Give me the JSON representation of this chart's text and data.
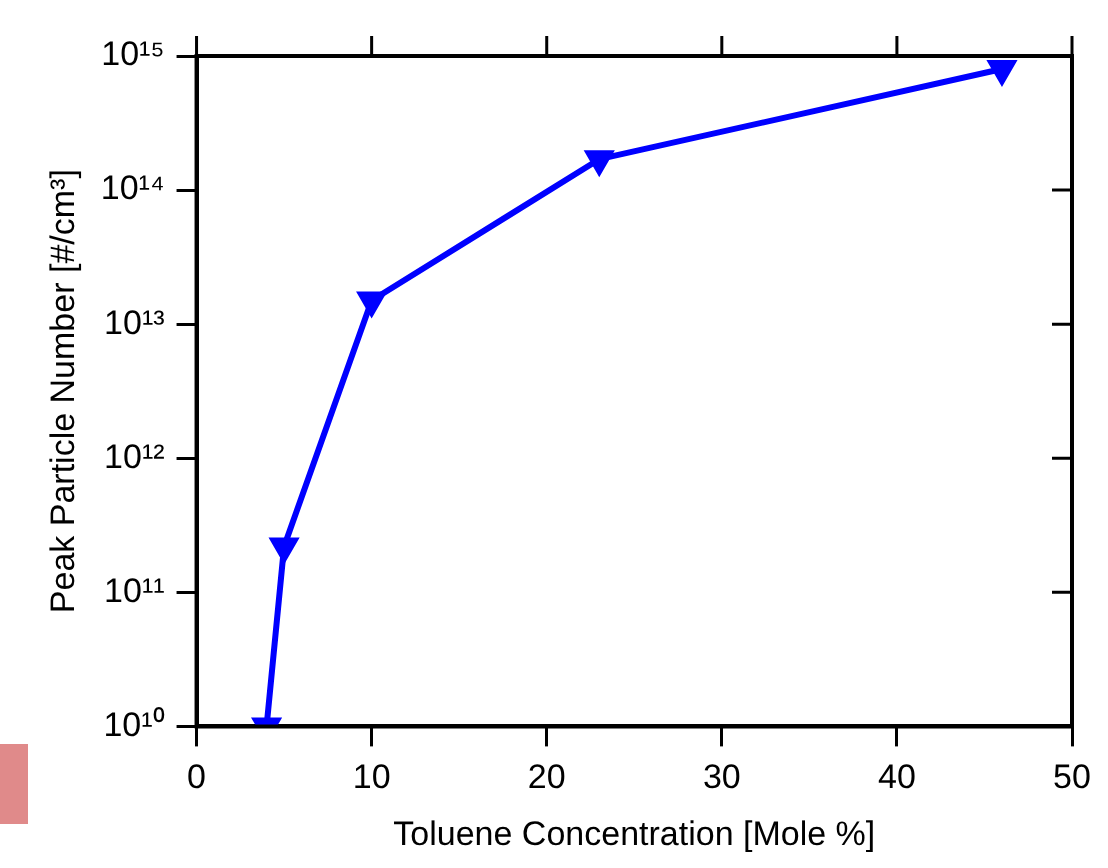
{
  "chart_data": {
    "type": "line",
    "xlabel": "Toluene Concentration [Mole %]",
    "ylabel": "Peak Particle Number [#/cm³]",
    "x": [
      4,
      5,
      10,
      23,
      46
    ],
    "series": [
      {
        "color": "#0000ff",
        "values": [
          10000000000.0,
          220000000000.0,
          15000000000000.0,
          170000000000000.0,
          800000000000000.0
        ]
      }
    ],
    "xlim": [
      0,
      50
    ],
    "xticks": [
      0,
      10,
      20,
      30,
      40,
      50
    ],
    "ylim": [
      10000000000.0,
      1000000000000000.0
    ],
    "yticks": [
      {
        "value": 10000000000.0,
        "label": "10¹⁰"
      },
      {
        "value": 100000000000.0,
        "label": "10¹¹"
      },
      {
        "value": 1000000000000.0,
        "label": "10¹²"
      },
      {
        "value": 10000000000000.0,
        "label": "10¹³"
      },
      {
        "value": 100000000000000.0,
        "label": "10¹⁴"
      },
      {
        "value": 1000000000000000.0,
        "label": "10¹⁵"
      }
    ],
    "log": "y",
    "grid": false,
    "legend": false,
    "marker": "triangle",
    "line_style": "solid"
  }
}
